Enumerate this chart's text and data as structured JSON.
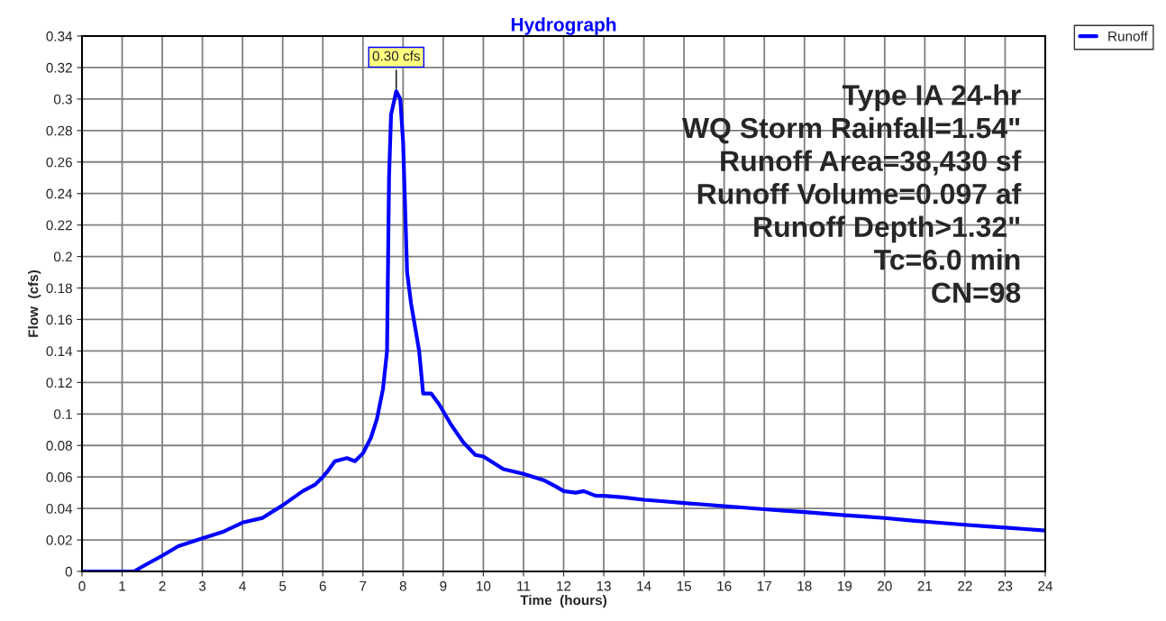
{
  "chart_data": {
    "type": "line",
    "title": "Hydrograph",
    "xlabel": "Time  (hours)",
    "ylabel": "Flow  (cfs)",
    "series": [
      {
        "name": "Runoff",
        "color": "#0000ff",
        "x": [
          0,
          1,
          1.3,
          1.5,
          2,
          2.4,
          3,
          3.5,
          4,
          4.5,
          5,
          5.5,
          5.8,
          6,
          6.1,
          6.3,
          6.6,
          6.8,
          7,
          7.2,
          7.35,
          7.5,
          7.6,
          7.65,
          7.7,
          7.83,
          7.93,
          8.0,
          8.1,
          8.2,
          8.3,
          8.4,
          8.5,
          8.7,
          8.9,
          9.2,
          9.5,
          9.8,
          10,
          10.5,
          11,
          11.5,
          11.8,
          12,
          12.3,
          12.5,
          12.8,
          13,
          13.5,
          14,
          14.5,
          15,
          15.5,
          16,
          16.5,
          17,
          17.5,
          18,
          18.5,
          19,
          19.5,
          20,
          20.5,
          21,
          21.5,
          22,
          22.5,
          23,
          23.5,
          24
        ],
        "values": [
          0,
          0,
          0,
          0.003,
          0.01,
          0.016,
          0.021,
          0.025,
          0.031,
          0.034,
          0.042,
          0.051,
          0.055,
          0.06,
          0.063,
          0.07,
          0.072,
          0.07,
          0.075,
          0.085,
          0.097,
          0.116,
          0.14,
          0.25,
          0.29,
          0.305,
          0.3,
          0.273,
          0.19,
          0.17,
          0.155,
          0.14,
          0.113,
          0.113,
          0.106,
          0.093,
          0.082,
          0.074,
          0.073,
          0.065,
          0.062,
          0.058,
          0.054,
          0.051,
          0.05,
          0.051,
          0.048,
          0.048,
          0.047,
          0.0455,
          0.0445,
          0.0434,
          0.0425,
          0.0414,
          0.0405,
          0.0395,
          0.0386,
          0.0377,
          0.0367,
          0.0357,
          0.0348,
          0.0339,
          0.0327,
          0.0316,
          0.0306,
          0.0296,
          0.0287,
          0.0278,
          0.0269,
          0.026
        ]
      }
    ],
    "annotations": [
      {
        "text": "0.30 cfs",
        "x": 7.83,
        "y": 0.305
      },
      "Type IA 24-hr",
      "WQ Storm Rainfall=1.54\"",
      "Runoff Area=38,430 sf",
      "Runoff Volume=0.097 af",
      "Runoff Depth>1.32\"",
      "Tc=6.0 min",
      "CN=98"
    ],
    "xlim": [
      0,
      24
    ],
    "xticks": [
      0,
      1,
      2,
      3,
      4,
      5,
      6,
      7,
      8,
      9,
      10,
      11,
      12,
      13,
      14,
      15,
      16,
      17,
      18,
      19,
      20,
      21,
      22,
      23,
      24
    ],
    "ylim": [
      0,
      0.34
    ],
    "yticks": [
      0,
      0.02,
      0.04,
      0.06,
      0.08,
      0.1,
      0.12,
      0.14,
      0.16,
      0.18,
      0.2,
      0.22,
      0.24,
      0.26,
      0.28,
      0.3,
      0.32,
      0.34
    ],
    "grid": true,
    "legend": "top right",
    "marker": "none",
    "line_style": "solid"
  }
}
